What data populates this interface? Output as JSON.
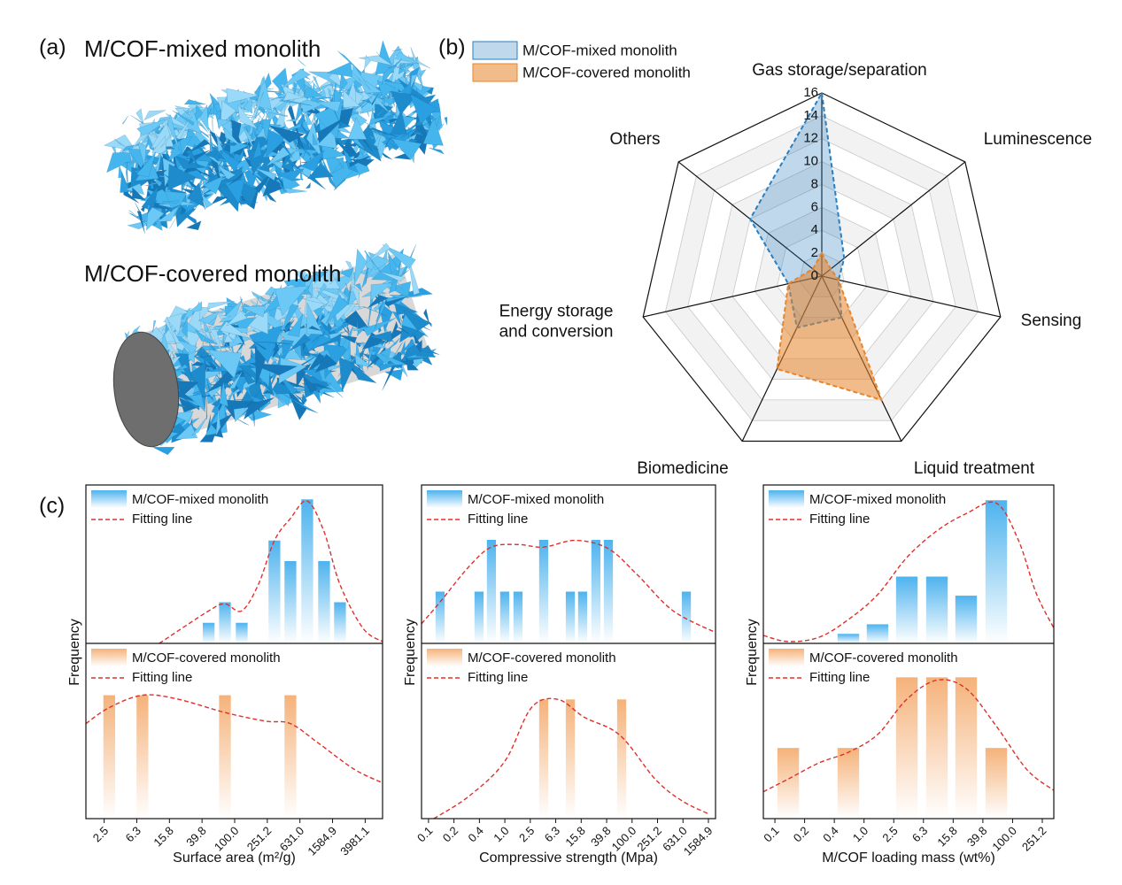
{
  "panel_labels": [
    "(a)",
    "(b)",
    "(c)"
  ],
  "illustration": {
    "titles": [
      "M/COF-mixed monolith",
      "M/COF-covered monolith"
    ]
  },
  "chart_data": [
    {
      "type": "radar",
      "categories": [
        "Gas storage/separation",
        "Luminescence",
        "Sensing",
        "Liquid treatment",
        "Biomedicine",
        "Energy storage\nand conversion",
        "Others"
      ],
      "series": [
        {
          "name": "M/COF-mixed monolith",
          "color": "#2a7fc0",
          "values": [
            16,
            2.5,
            1.5,
            4,
            5,
            3,
            8
          ]
        },
        {
          "name": "M/COF-covered monolith",
          "color": "#e8842a",
          "values": [
            2,
            1,
            1.5,
            12,
            9,
            3,
            1
          ]
        }
      ],
      "ylim": [
        0,
        16
      ],
      "yticks": [
        0,
        2,
        4,
        6,
        8,
        10,
        12,
        14,
        16
      ],
      "grid": true
    },
    {
      "type": "bar",
      "xscale": "log",
      "xlabel": "Surface area (m²/g)",
      "ylabel": "Frequency",
      "xlim": [
        1.5,
        6500
      ],
      "xticks": [
        {
          "value": 2.512,
          "label": "2.5"
        },
        {
          "value": 6.31,
          "label": "6.3"
        },
        {
          "value": 15.85,
          "label": "15.8"
        },
        {
          "value": 39.81,
          "label": "39.8"
        },
        {
          "value": 100,
          "label": "100.0"
        },
        {
          "value": 251.19,
          "label": "251.2"
        },
        {
          "value": 630.96,
          "label": "631.0"
        },
        {
          "value": 1584.89,
          "label": "1584.9"
        },
        {
          "value": 3981.07,
          "label": "3981.1"
        }
      ],
      "subplots": [
        {
          "ylim": [
            0,
            7.7
          ],
          "series": [
            {
              "name": "M/COF-mixed monolith",
              "color": "#4db3ee",
              "x": [
                48,
                76,
                122,
                307,
                482,
                775,
                1247,
                1955
              ],
              "values": [
                1,
                2,
                1,
                5,
                4,
                7,
                4,
                2
              ]
            },
            {
              "name": "Fitting line",
              "type": "line",
              "color": "#e0302a",
              "x": [
                11.9,
                48,
                76,
                122,
                195,
                307,
                482,
                775,
                1247,
                1955,
                3750,
                6500
              ],
              "values": [
                0,
                1.58,
                1.92,
                1.58,
                2.86,
                5.0,
                6.07,
                6.92,
                5.43,
                2.86,
                0.73,
                0.09
              ]
            }
          ]
        },
        {
          "ylim": [
            0,
            1.42
          ],
          "series": [
            {
              "name": "M/COF-covered monolith",
              "color": "#f5b27a",
              "x": [
                2.9,
                7.4,
                76,
                482
              ],
              "values": [
                1,
                1,
                1,
                1
              ]
            },
            {
              "name": "Fitting line",
              "type": "line",
              "color": "#e0302a",
              "x": [
                1.5,
                2.9,
                7.4,
                19.6,
                76,
                239,
                482,
                1072,
                2917,
                6500
              ],
              "values": [
                0.77,
                0.9,
                1.0,
                0.97,
                0.86,
                0.79,
                0.77,
                0.61,
                0.4,
                0.29
              ]
            }
          ]
        }
      ]
    },
    {
      "type": "bar",
      "xscale": "log",
      "xlabel": "Compressive strength (Mpa)",
      "ylabel": "Frequency",
      "xlim": [
        0.049,
        2050
      ],
      "xticks": [
        {
          "value": 0.0631,
          "label": "0.1"
        },
        {
          "value": 0.1585,
          "label": "0.2"
        },
        {
          "value": 0.3981,
          "label": "0.4"
        },
        {
          "value": 1,
          "label": "1.0"
        },
        {
          "value": 2.512,
          "label": "2.5"
        },
        {
          "value": 6.31,
          "label": "6.3"
        },
        {
          "value": 15.85,
          "label": "15.8"
        },
        {
          "value": 39.81,
          "label": "39.8"
        },
        {
          "value": 100,
          "label": "100.0"
        },
        {
          "value": 251.19,
          "label": "251.2"
        },
        {
          "value": 630.96,
          "label": "631.0"
        },
        {
          "value": 1584.89,
          "label": "1584.9"
        }
      ],
      "subplots": [
        {
          "ylim": [
            0,
            3.06
          ],
          "series": [
            {
              "name": "M/COF-mixed monolith",
              "color": "#4db3ee",
              "x": [
                0.096,
                0.393,
                0.615,
                0.995,
                1.61,
                4.08,
                10.7,
                16.7,
                27,
                42.4,
                713
              ],
              "values": [
                1,
                1,
                2,
                1,
                1,
                2,
                1,
                1,
                2,
                2,
                1
              ]
            },
            {
              "name": "Fitting line",
              "type": "line",
              "color": "#e0302a",
              "x": [
                0.049,
                0.096,
                0.276,
                0.615,
                1.61,
                4.08,
                12.9,
                42.4,
                122,
                441,
                2050
              ],
              "values": [
                0.38,
                0.8,
                1.49,
                1.86,
                1.91,
                1.86,
                1.99,
                1.83,
                1.32,
                0.63,
                0.21
              ]
            }
          ]
        },
        {
          "ylim": [
            0,
            1.47
          ],
          "series": [
            {
              "name": "M/COF-covered monolith",
              "color": "#f5b27a",
              "x": [
                4.08,
                10.7,
                68.6
              ],
              "values": [
                1,
                1,
                1
              ]
            },
            {
              "name": "Fitting line",
              "type": "line",
              "color": "#e0302a",
              "x": [
                0.0766,
                0.276,
                0.995,
                2.61,
                6.82,
                17.8,
                64.3,
                232,
                607,
                1588
              ],
              "values": [
                0,
                0.19,
                0.48,
                0.93,
                1.0,
                0.85,
                0.7,
                0.33,
                0.15,
                0.04
              ]
            }
          ]
        }
      ]
    },
    {
      "type": "bar",
      "xscale": "log",
      "xlabel": "M/COF loading mass (wt%)",
      "ylabel": "Frequency",
      "xlim": [
        0.0441,
        359
      ],
      "xticks": [
        {
          "value": 0.0631,
          "label": "0.1"
        },
        {
          "value": 0.1585,
          "label": "0.2"
        },
        {
          "value": 0.3981,
          "label": "0.4"
        },
        {
          "value": 1,
          "label": "1.0"
        },
        {
          "value": 2.512,
          "label": "2.5"
        },
        {
          "value": 6.31,
          "label": "6.3"
        },
        {
          "value": 15.85,
          "label": "15.8"
        },
        {
          "value": 39.81,
          "label": "39.8"
        },
        {
          "value": 100,
          "label": "100.0"
        },
        {
          "value": 251.19,
          "label": "251.2"
        }
      ],
      "subplots": [
        {
          "ylim": [
            0,
            16.6
          ],
          "series": [
            {
              "name": "M/COF-mixed monolith",
              "color": "#4db3ee",
              "x": [
                0.615,
                1.52,
                3.77,
                9.58,
                23.7,
                60.3
              ],
              "values": [
                1,
                2,
                7,
                7,
                5,
                15
              ]
            },
            {
              "name": "Fitting line",
              "type": "line",
              "color": "#e0302a",
              "x": [
                0.0441,
                0.0953,
                0.249,
                0.615,
                1.52,
                3.77,
                9.58,
                23.7,
                60.3,
                120,
                207,
                359
              ],
              "values": [
                0.83,
                0.19,
                0.65,
                2.5,
                5.1,
                9.0,
                11.8,
                13.6,
                14.7,
                10.8,
                5.3,
                1.6
              ]
            }
          ]
        },
        {
          "ylim": [
            0,
            2.48
          ],
          "series": [
            {
              "name": "M/COF-covered monolith",
              "color": "#f5b27a",
              "x": [
                0.0953,
                0.615,
                3.77,
                9.58,
                23.7,
                60.3
              ],
              "values": [
                1,
                1,
                2,
                2,
                2,
                1
              ]
            },
            {
              "name": "Fitting line",
              "type": "line",
              "color": "#e0302a",
              "x": [
                0.0441,
                0.0953,
                0.249,
                0.615,
                1.52,
                3.77,
                9.58,
                23.7,
                60.3,
                157,
                359
              ],
              "values": [
                0.38,
                0.56,
                0.79,
                0.94,
                1.19,
                1.69,
                1.96,
                1.84,
                1.31,
                0.69,
                0.4
              ]
            }
          ]
        }
      ]
    }
  ]
}
